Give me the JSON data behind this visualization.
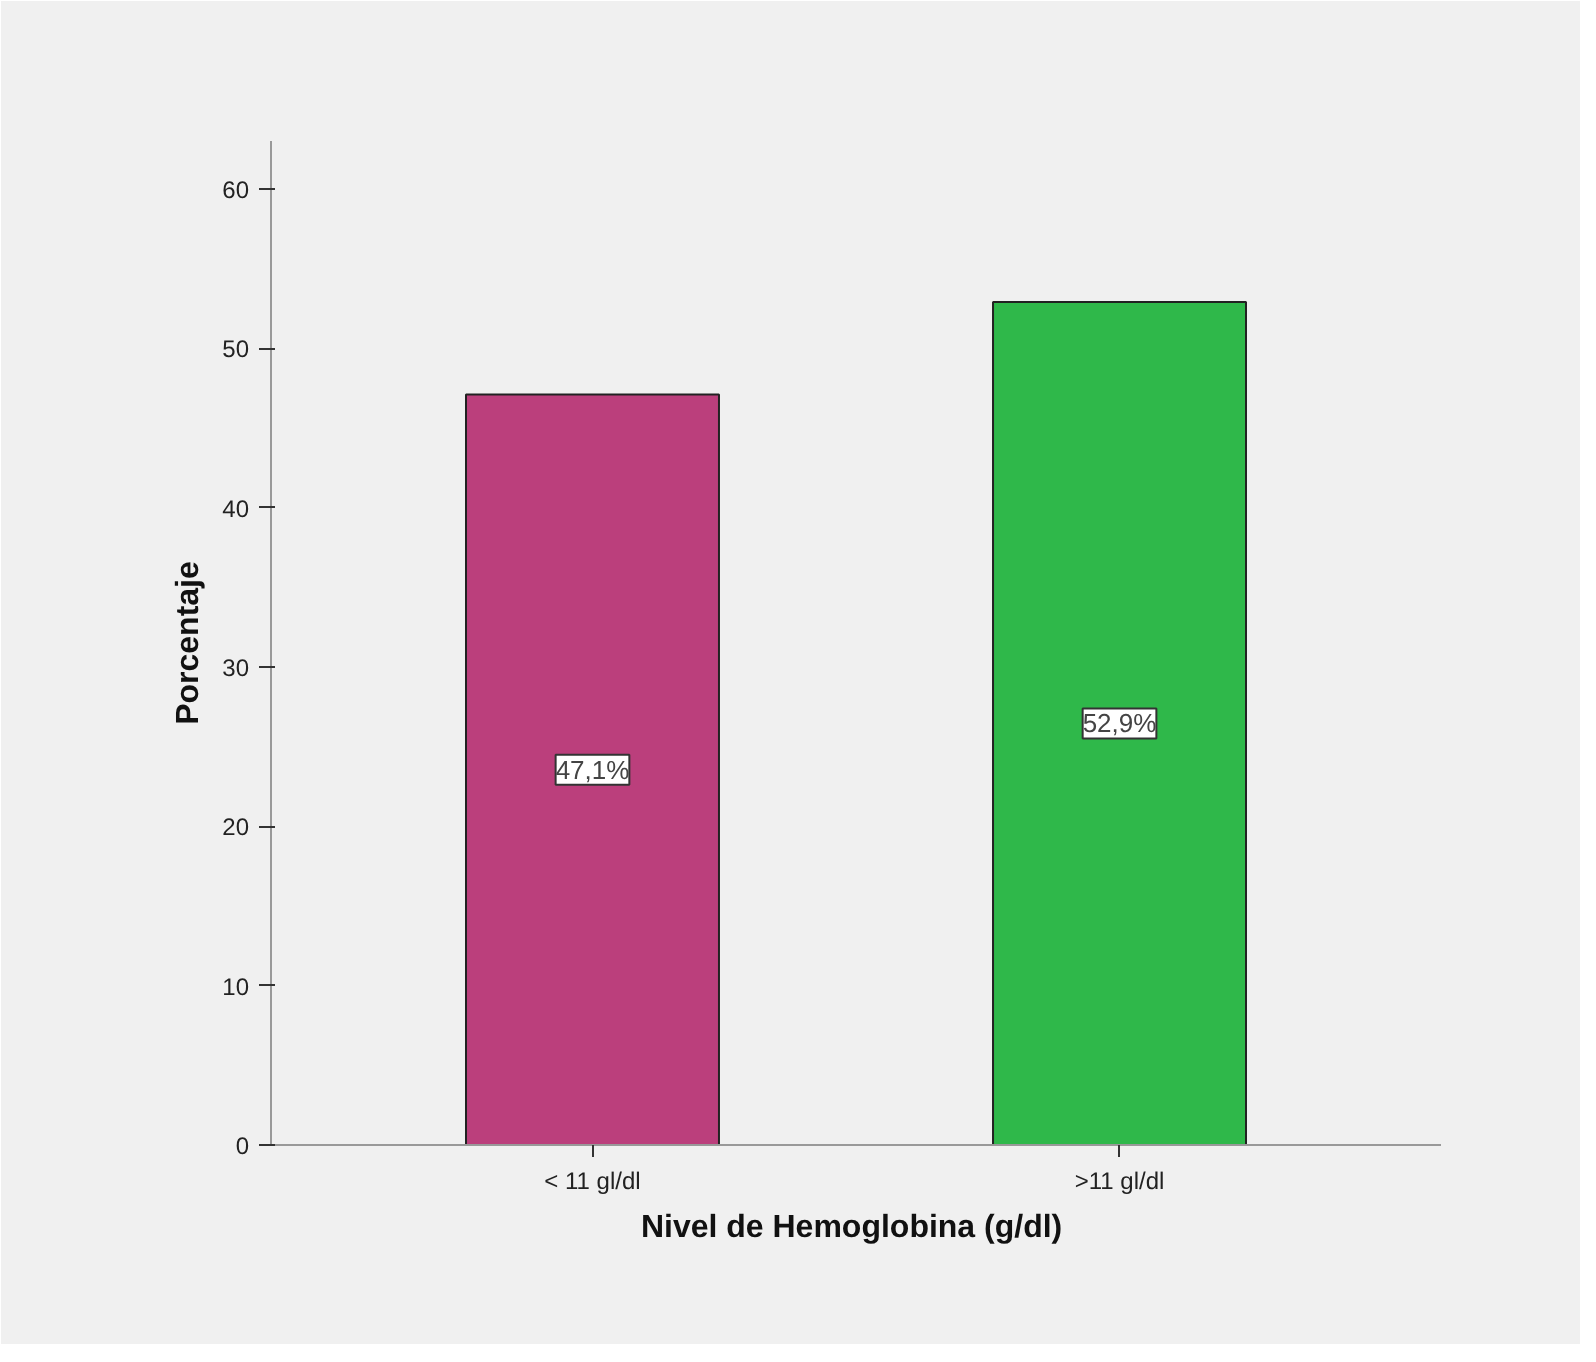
{
  "chart_data": {
    "type": "bar",
    "xlabel": "Nivel de Hemoglobina  (g/dl)",
    "ylabel": "Porcentaje",
    "categories": [
      "< 11 gl/dl",
      ">11 gl/dl"
    ],
    "values": [
      47.1,
      52.9
    ],
    "value_labels": [
      "47,1%",
      "52,9%"
    ],
    "colors": [
      "#bb3f7c",
      "#2fb84a"
    ],
    "ylim": [
      0,
      63
    ],
    "yticks": [
      0,
      10,
      20,
      30,
      40,
      50,
      60
    ],
    "grid": false
  }
}
